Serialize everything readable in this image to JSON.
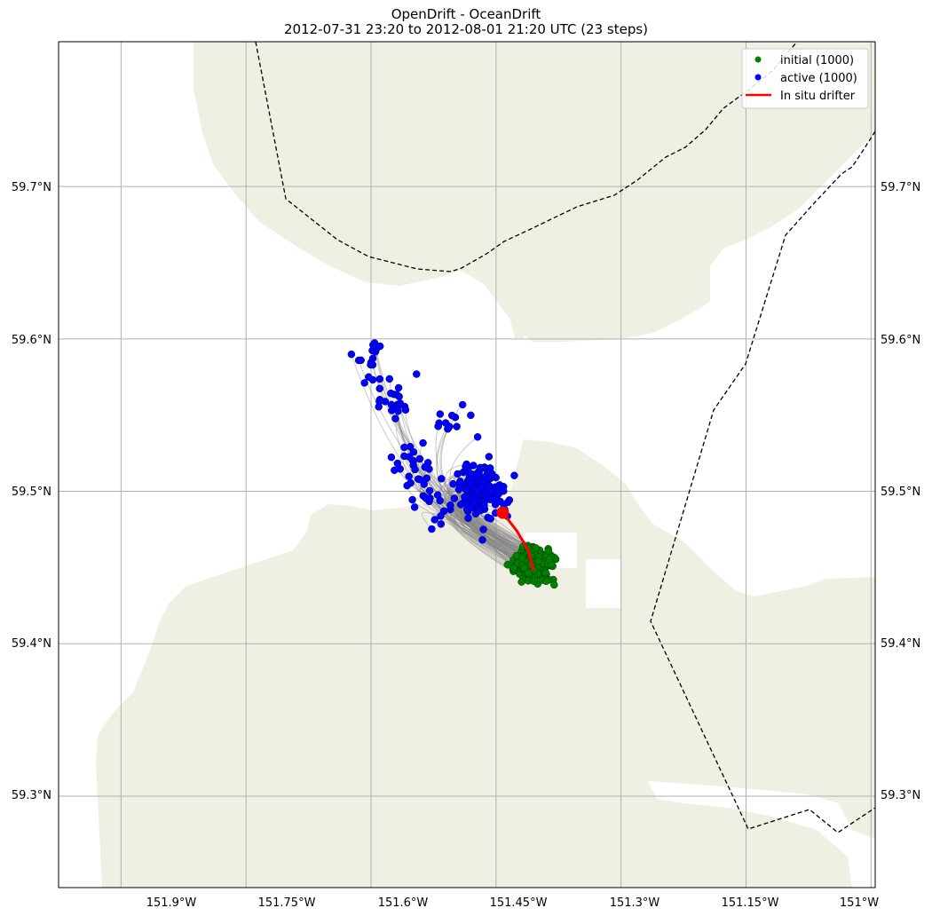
{
  "title": {
    "line1": "OpenDrift - OceanDrift",
    "line2": "2012-07-31 23:20 to 2012-08-01 21:20 UTC (23 steps)"
  },
  "map": {
    "lon_range": [
      -151.975,
      -150.995
    ],
    "lat_range": [
      59.24,
      59.795
    ],
    "land_color": "#efefe4",
    "water_color": "#ffffff",
    "grid_color": "#b0b0b0",
    "boundary_style": "dashed black line"
  },
  "axes": {
    "x_ticks": [
      "151.9°W",
      "151.75°W",
      "151.6°W",
      "151.45°W",
      "151.3°W",
      "151.15°W",
      "151°W"
    ],
    "y_ticks": [
      "59.3°N",
      "59.4°N",
      "59.5°N",
      "59.6°N",
      "59.7°N"
    ]
  },
  "legend": {
    "placement": "top-right",
    "items": [
      {
        "label": "initial (1000)",
        "color": "#008000",
        "kind": "marker"
      },
      {
        "label": "active (1000)",
        "color": "#0000ff",
        "kind": "marker"
      },
      {
        "label": "In situ drifter",
        "color": "#ff0000",
        "kind": "line"
      }
    ]
  },
  "chart_data": {
    "type": "scatter",
    "title": "OpenDrift - OceanDrift",
    "subtitle": "2012-07-31 23:20 to 2012-08-01 21:20 UTC (23 steps)",
    "xlim": [
      -151.975,
      -150.995
    ],
    "ylim": [
      59.24,
      59.795
    ],
    "x_tick_values": [
      -151.9,
      -151.75,
      -151.6,
      -151.45,
      -151.3,
      -151.15,
      -151.0
    ],
    "y_tick_values": [
      59.3,
      59.4,
      59.5,
      59.6,
      59.7
    ],
    "grid": true,
    "legend_position": "top-right",
    "series": [
      {
        "name": "initial (1000)",
        "color": "#008000",
        "count": 1000,
        "center": [
          -151.405,
          59.452
        ],
        "spread": [
          0.018,
          0.009
        ]
      },
      {
        "name": "active (1000)",
        "color": "#0000ff",
        "count": 1000
      },
      {
        "name": "In situ drifter",
        "color": "#ff0000",
        "x": [
          -151.405,
          -151.412,
          -151.425,
          -151.442
        ],
        "y": [
          59.448,
          59.462,
          59.474,
          59.486
        ]
      }
    ]
  }
}
